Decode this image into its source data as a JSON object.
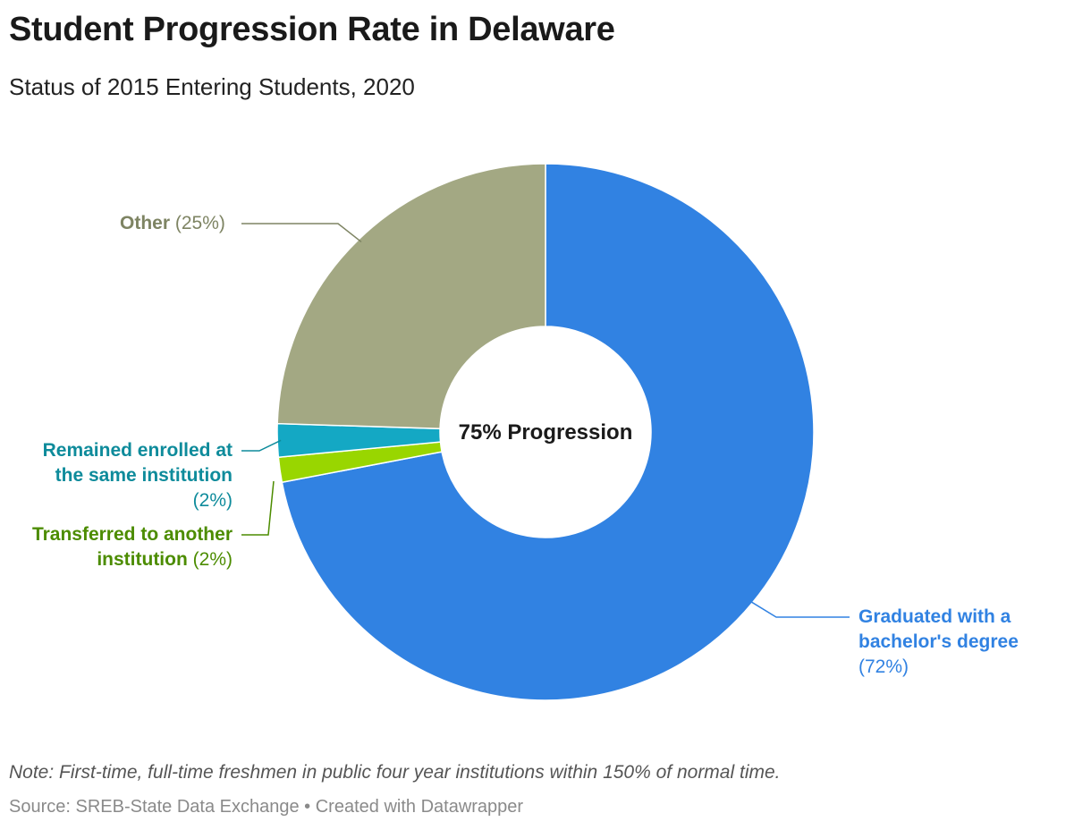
{
  "header": {
    "title": "Student Progression Rate in Delaware",
    "subtitle": "Status of 2015 Entering Students, 2020"
  },
  "chart_data": {
    "type": "pie",
    "variant": "donut",
    "title": "Student Progression Rate in Delaware",
    "subtitle": "Status of 2015 Entering Students, 2020",
    "center_label": "75% Progression",
    "start_angle_deg": 0,
    "direction": "clockwise",
    "slices": [
      {
        "key": "graduated",
        "label_line1": "Graduated with a",
        "label_line2": "bachelor's degree",
        "value_text": "(72%)",
        "value": 72,
        "color": "#3182e2"
      },
      {
        "key": "transferred",
        "label_line1": "Transferred to another",
        "label_line2": "institution",
        "value_text": "(2%)",
        "value": 1.5,
        "color": "#99d600"
      },
      {
        "key": "remained",
        "label_line1": "Remained enrolled at",
        "label_line2": "the same institution",
        "value_text": "(2%)",
        "value": 2,
        "color": "#14a8c4"
      },
      {
        "key": "other",
        "label_line1": "Other",
        "label_line2": "",
        "value_text": "(25%)",
        "value": 24.5,
        "color": "#a3a883"
      }
    ],
    "label_colors": {
      "graduated": "#3182e2",
      "transferred": "#4c8c00",
      "remained": "#0e8b9b",
      "other": "#7e8463"
    }
  },
  "footer": {
    "note": "Note: First-time, full-time freshmen in public four year institutions within 150% of normal time.",
    "source": "Source: SREB-State Data Exchange • Created with Datawrapper"
  }
}
